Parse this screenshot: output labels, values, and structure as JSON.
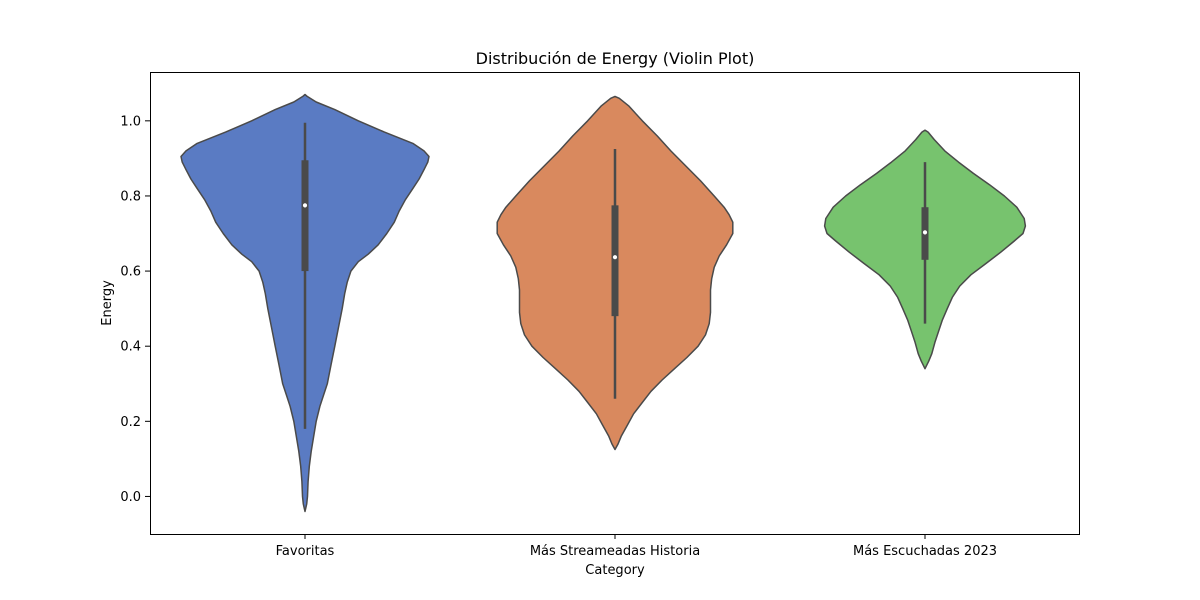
{
  "chart_data": {
    "type": "violin",
    "title": "Distribución de Energy (Violin Plot)",
    "xlabel": "Category",
    "ylabel": "Energy",
    "ylim": [
      -0.1,
      1.13
    ],
    "yticks": [
      "0.0",
      "0.2",
      "0.4",
      "0.6",
      "0.8",
      "1.0"
    ],
    "grid": false,
    "categories": [
      "Favoritas",
      "Más Streameadas Historia",
      "Más Escuchadas 2023"
    ],
    "series": [
      {
        "category": "Favoritas",
        "color": "#5a7bc3",
        "box": {
          "whisker_low": 0.18,
          "q1": 0.6,
          "median": 0.775,
          "q3": 0.895,
          "whisker_high": 0.995
        },
        "profile": [
          [
            1.07,
            0.0
          ],
          [
            1.065,
            0.018
          ],
          [
            1.05,
            0.09
          ],
          [
            1.03,
            0.24
          ],
          [
            1.0,
            0.43
          ],
          [
            0.97,
            0.64
          ],
          [
            0.94,
            0.87
          ],
          [
            0.92,
            0.96
          ],
          [
            0.905,
            1.0
          ],
          [
            0.89,
            0.99
          ],
          [
            0.87,
            0.96
          ],
          [
            0.845,
            0.92
          ],
          [
            0.82,
            0.87
          ],
          [
            0.79,
            0.81
          ],
          [
            0.76,
            0.76
          ],
          [
            0.73,
            0.72
          ],
          [
            0.7,
            0.66
          ],
          [
            0.67,
            0.59
          ],
          [
            0.645,
            0.51
          ],
          [
            0.625,
            0.43
          ],
          [
            0.6,
            0.37
          ],
          [
            0.57,
            0.34
          ],
          [
            0.54,
            0.32
          ],
          [
            0.5,
            0.3
          ],
          [
            0.45,
            0.27
          ],
          [
            0.4,
            0.24
          ],
          [
            0.35,
            0.21
          ],
          [
            0.3,
            0.18
          ],
          [
            0.27,
            0.15
          ],
          [
            0.24,
            0.12
          ],
          [
            0.2,
            0.09
          ],
          [
            0.16,
            0.07
          ],
          [
            0.12,
            0.05
          ],
          [
            0.08,
            0.035
          ],
          [
            0.04,
            0.025
          ],
          [
            0.0,
            0.02
          ],
          [
            -0.02,
            0.014
          ],
          [
            -0.04,
            0.0
          ]
        ]
      },
      {
        "category": "Más Streameadas Historia",
        "color": "#d9895e",
        "box": {
          "whisker_low": 0.26,
          "q1": 0.48,
          "median": 0.637,
          "q3": 0.775,
          "whisker_high": 0.925
        },
        "profile": [
          [
            1.065,
            0.0
          ],
          [
            1.06,
            0.035
          ],
          [
            1.04,
            0.11
          ],
          [
            1.0,
            0.22
          ],
          [
            0.96,
            0.34
          ],
          [
            0.92,
            0.45
          ],
          [
            0.88,
            0.57
          ],
          [
            0.84,
            0.69
          ],
          [
            0.8,
            0.8
          ],
          [
            0.77,
            0.88
          ],
          [
            0.75,
            0.92
          ],
          [
            0.73,
            0.95
          ],
          [
            0.7,
            0.95
          ],
          [
            0.67,
            0.9
          ],
          [
            0.64,
            0.84
          ],
          [
            0.61,
            0.8
          ],
          [
            0.58,
            0.78
          ],
          [
            0.55,
            0.77
          ],
          [
            0.52,
            0.77
          ],
          [
            0.49,
            0.77
          ],
          [
            0.46,
            0.76
          ],
          [
            0.43,
            0.73
          ],
          [
            0.4,
            0.67
          ],
          [
            0.37,
            0.58
          ],
          [
            0.34,
            0.48
          ],
          [
            0.31,
            0.38
          ],
          [
            0.28,
            0.29
          ],
          [
            0.25,
            0.22
          ],
          [
            0.22,
            0.15
          ],
          [
            0.19,
            0.1
          ],
          [
            0.16,
            0.05
          ],
          [
            0.14,
            0.025
          ],
          [
            0.125,
            0.0
          ]
        ]
      },
      {
        "category": "Más Escuchadas 2023",
        "color": "#77c36e",
        "box": {
          "whisker_low": 0.46,
          "q1": 0.63,
          "median": 0.703,
          "q3": 0.77,
          "whisker_high": 0.89
        },
        "profile": [
          [
            0.975,
            0.0
          ],
          [
            0.97,
            0.025
          ],
          [
            0.95,
            0.075
          ],
          [
            0.92,
            0.16
          ],
          [
            0.89,
            0.27
          ],
          [
            0.86,
            0.39
          ],
          [
            0.83,
            0.52
          ],
          [
            0.8,
            0.64
          ],
          [
            0.77,
            0.74
          ],
          [
            0.74,
            0.8
          ],
          [
            0.72,
            0.81
          ],
          [
            0.7,
            0.79
          ],
          [
            0.68,
            0.72
          ],
          [
            0.65,
            0.61
          ],
          [
            0.62,
            0.49
          ],
          [
            0.59,
            0.37
          ],
          [
            0.56,
            0.28
          ],
          [
            0.53,
            0.22
          ],
          [
            0.5,
            0.18
          ],
          [
            0.47,
            0.14
          ],
          [
            0.44,
            0.11
          ],
          [
            0.41,
            0.08
          ],
          [
            0.38,
            0.055
          ],
          [
            0.36,
            0.03
          ],
          [
            0.34,
            0.0
          ]
        ]
      }
    ]
  }
}
